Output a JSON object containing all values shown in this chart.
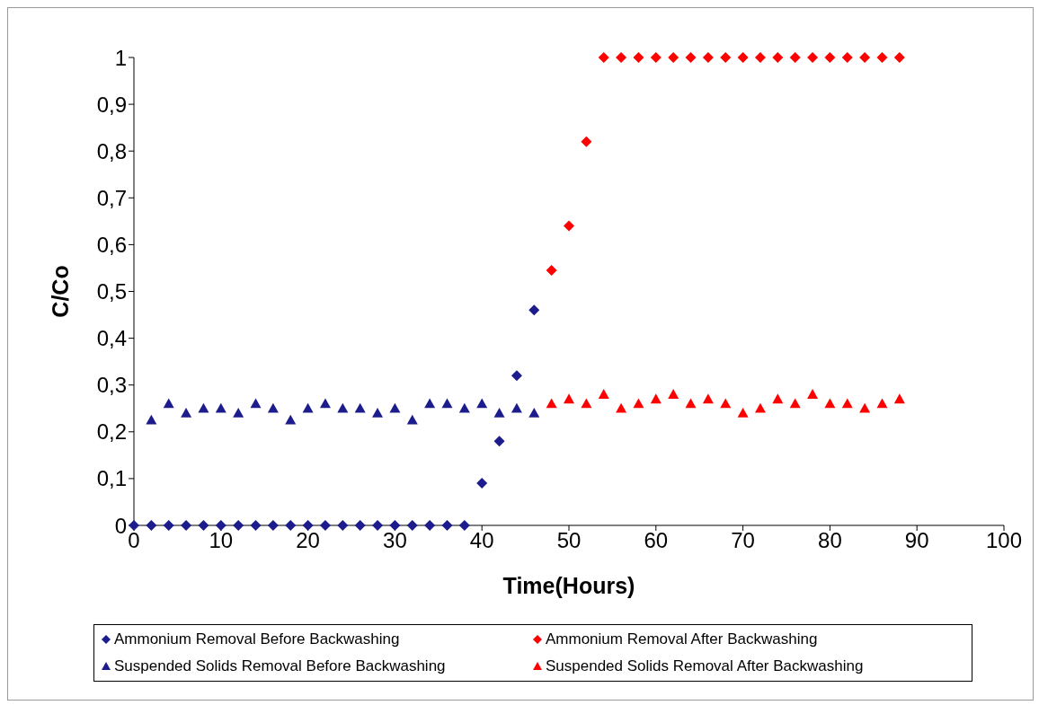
{
  "chart_data": {
    "type": "scatter",
    "xlabel": "Time(Hours)",
    "ylabel": "C/Co",
    "xlim": [
      0,
      100
    ],
    "xticks": [
      0,
      10,
      20,
      30,
      40,
      50,
      60,
      70,
      80,
      90,
      100
    ],
    "ylim": [
      0,
      1
    ],
    "yticks": [
      0,
      {
        "value": 0.1,
        "label": "0,1"
      },
      {
        "value": 0.2,
        "label": "0,2"
      },
      {
        "value": 0.3,
        "label": "0,3"
      },
      {
        "value": 0.4,
        "label": "0,4"
      },
      {
        "value": 0.5,
        "label": "0,5"
      },
      {
        "value": 0.6,
        "label": "0,6"
      },
      {
        "value": 0.7,
        "label": "0,7"
      },
      {
        "value": 0.8,
        "label": "0,8"
      },
      {
        "value": 0.9,
        "label": "0,9"
      },
      1
    ],
    "grid": false,
    "legend": "bottom",
    "series": [
      {
        "name": "Ammonium Removal Before Backwashing",
        "color": "#1c1c8c",
        "marker": "diamond",
        "x": [
          0,
          2,
          4,
          6,
          8,
          10,
          12,
          14,
          16,
          18,
          20,
          22,
          24,
          26,
          28,
          30,
          32,
          34,
          36,
          38,
          40,
          42,
          44,
          46
        ],
        "values": [
          0,
          0,
          0,
          0,
          0,
          0,
          0,
          0,
          0,
          0,
          0,
          0,
          0,
          0,
          0,
          0,
          0,
          0,
          0,
          0,
          0.09,
          0.18,
          0.32,
          0.46
        ]
      },
      {
        "name": "Ammonium Removal After Backwashing",
        "color": "#ff0000",
        "marker": "diamond",
        "x": [
          48,
          50,
          52,
          54,
          56,
          58,
          60,
          62,
          64,
          66,
          68,
          70,
          72,
          74,
          76,
          78,
          80,
          82,
          84,
          86,
          88
        ],
        "values": [
          0.545,
          0.64,
          0.82,
          1,
          1,
          1,
          1,
          1,
          1,
          1,
          1,
          1,
          1,
          1,
          1,
          1,
          1,
          1,
          1,
          1,
          1
        ]
      },
      {
        "name": "Suspended Solids Removal Before Backwashing",
        "color": "#1c1c8c",
        "marker": "triangle",
        "x": [
          2,
          4,
          6,
          8,
          10,
          12,
          14,
          16,
          18,
          20,
          22,
          24,
          26,
          28,
          30,
          32,
          34,
          36,
          38,
          40,
          42,
          44,
          46
        ],
        "values": [
          0.225,
          0.26,
          0.24,
          0.25,
          0.25,
          0.24,
          0.26,
          0.25,
          0.225,
          0.25,
          0.26,
          0.25,
          0.25,
          0.24,
          0.25,
          0.225,
          0.26,
          0.26,
          0.25,
          0.26,
          0.24,
          0.25,
          0.24
        ]
      },
      {
        "name": "Suspended Solids Removal After Backwashing",
        "color": "#ff0000",
        "marker": "triangle",
        "x": [
          48,
          50,
          52,
          54,
          56,
          58,
          60,
          62,
          64,
          66,
          68,
          70,
          72,
          74,
          76,
          78,
          80,
          82,
          84,
          86,
          88
        ],
        "values": [
          0.26,
          0.27,
          0.26,
          0.28,
          0.25,
          0.26,
          0.27,
          0.28,
          0.26,
          0.27,
          0.26,
          0.24,
          0.25,
          0.27,
          0.26,
          0.28,
          0.26,
          0.26,
          0.25,
          0.26,
          0.27
        ]
      }
    ]
  }
}
